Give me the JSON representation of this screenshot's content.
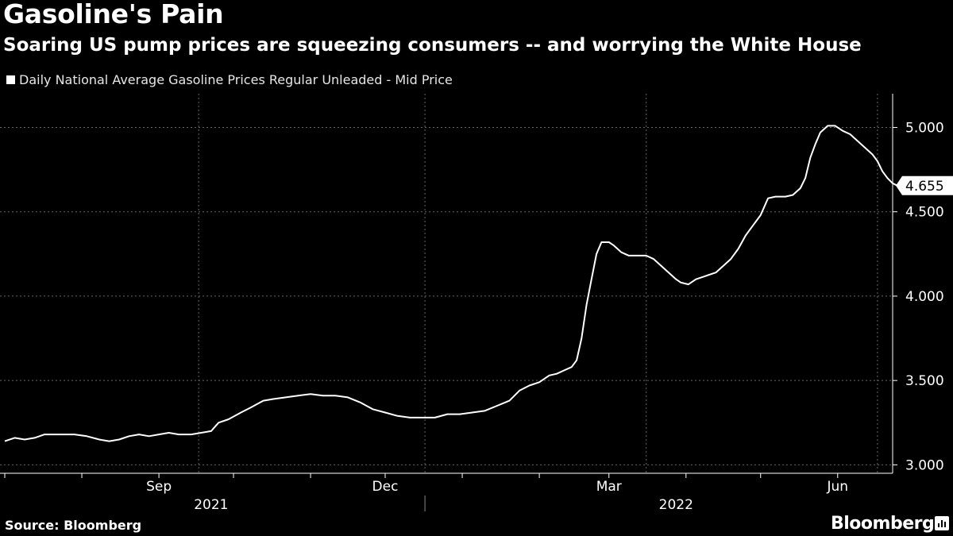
{
  "title": "Gasoline's Pain",
  "subtitle": "Soaring US pump prices are squeezing consumers -- and worrying the White House",
  "source": "Source: Bloomberg",
  "brand": "Bloomberg",
  "colors": {
    "background": "#000000",
    "line": "#ffffff",
    "grid": "#666666"
  },
  "chart_data": {
    "type": "line",
    "title": "Gasoline's Pain",
    "legend": "Daily National Average Gasoline Prices Regular Unleaded - Mid Price",
    "legend_position": "top-left",
    "y_axis_side": "right",
    "ylim": [
      2.95,
      5.2
    ],
    "yticks": [
      {
        "value": 3.0,
        "label": "3.000"
      },
      {
        "value": 3.5,
        "label": "3.500"
      },
      {
        "value": 4.0,
        "label": "4.000"
      },
      {
        "value": 4.5,
        "label": "4.500"
      },
      {
        "value": 5.0,
        "label": "5.000"
      }
    ],
    "xlim": [
      0,
      352
    ],
    "month_starts": [
      0,
      31,
      62,
      92,
      123,
      153,
      184,
      215,
      243,
      274,
      304,
      335
    ],
    "xlabels": [
      {
        "x": 62,
        "label": "Sep"
      },
      {
        "x": 153,
        "label": "Dec"
      },
      {
        "x": 243,
        "label": "Mar"
      },
      {
        "x": 335,
        "label": "Jun"
      }
    ],
    "year_labels": [
      {
        "x": 83,
        "label": "2021"
      },
      {
        "x": 270,
        "label": "2022"
      }
    ],
    "year_divider_x": 169,
    "vgrid_x": [
      78,
      169,
      258,
      351
    ],
    "last_value": {
      "x": 352,
      "value": 4.655,
      "label": "4.655"
    },
    "series": [
      {
        "name": "Daily National Average Gasoline Prices Regular Unleaded - Mid Price",
        "points": [
          [
            0,
            3.14
          ],
          [
            4,
            3.16
          ],
          [
            8,
            3.15
          ],
          [
            12,
            3.16
          ],
          [
            16,
            3.18
          ],
          [
            22,
            3.18
          ],
          [
            28,
            3.18
          ],
          [
            33,
            3.17
          ],
          [
            38,
            3.15
          ],
          [
            42,
            3.14
          ],
          [
            46,
            3.15
          ],
          [
            50,
            3.17
          ],
          [
            54,
            3.18
          ],
          [
            58,
            3.17
          ],
          [
            62,
            3.18
          ],
          [
            66,
            3.19
          ],
          [
            70,
            3.18
          ],
          [
            75,
            3.18
          ],
          [
            79,
            3.19
          ],
          [
            83,
            3.2
          ],
          [
            86,
            3.25
          ],
          [
            90,
            3.27
          ],
          [
            95,
            3.31
          ],
          [
            99,
            3.34
          ],
          [
            104,
            3.38
          ],
          [
            108,
            3.39
          ],
          [
            113,
            3.4
          ],
          [
            118,
            3.41
          ],
          [
            123,
            3.42
          ],
          [
            128,
            3.41
          ],
          [
            133,
            3.41
          ],
          [
            138,
            3.4
          ],
          [
            143,
            3.37
          ],
          [
            148,
            3.33
          ],
          [
            153,
            3.31
          ],
          [
            158,
            3.29
          ],
          [
            163,
            3.28
          ],
          [
            168,
            3.28
          ],
          [
            173,
            3.28
          ],
          [
            178,
            3.3
          ],
          [
            183,
            3.3
          ],
          [
            188,
            3.31
          ],
          [
            193,
            3.32
          ],
          [
            198,
            3.35
          ],
          [
            203,
            3.38
          ],
          [
            207,
            3.44
          ],
          [
            211,
            3.47
          ],
          [
            215,
            3.49
          ],
          [
            219,
            3.53
          ],
          [
            222,
            3.54
          ],
          [
            225,
            3.56
          ],
          [
            228,
            3.58
          ],
          [
            230,
            3.62
          ],
          [
            232,
            3.75
          ],
          [
            234,
            3.95
          ],
          [
            236,
            4.1
          ],
          [
            238,
            4.25
          ],
          [
            240,
            4.32
          ],
          [
            243,
            4.32
          ],
          [
            245,
            4.3
          ],
          [
            248,
            4.26
          ],
          [
            251,
            4.24
          ],
          [
            255,
            4.24
          ],
          [
            258,
            4.24
          ],
          [
            261,
            4.22
          ],
          [
            264,
            4.18
          ],
          [
            267,
            4.14
          ],
          [
            270,
            4.1
          ],
          [
            272,
            4.08
          ],
          [
            275,
            4.07
          ],
          [
            278,
            4.1
          ],
          [
            282,
            4.12
          ],
          [
            286,
            4.14
          ],
          [
            289,
            4.18
          ],
          [
            292,
            4.22
          ],
          [
            295,
            4.28
          ],
          [
            298,
            4.36
          ],
          [
            301,
            4.42
          ],
          [
            304,
            4.48
          ],
          [
            307,
            4.58
          ],
          [
            310,
            4.59
          ],
          [
            314,
            4.59
          ],
          [
            317,
            4.6
          ],
          [
            320,
            4.64
          ],
          [
            322,
            4.7
          ],
          [
            324,
            4.82
          ],
          [
            326,
            4.9
          ],
          [
            328,
            4.97
          ],
          [
            331,
            5.01
          ],
          [
            334,
            5.01
          ],
          [
            337,
            4.98
          ],
          [
            340,
            4.96
          ],
          [
            343,
            4.92
          ],
          [
            346,
            4.88
          ],
          [
            349,
            4.84
          ],
          [
            351,
            4.8
          ],
          [
            353,
            4.74
          ],
          [
            355,
            4.7
          ],
          [
            357,
            4.67
          ],
          [
            359,
            4.655
          ]
        ]
      }
    ]
  }
}
